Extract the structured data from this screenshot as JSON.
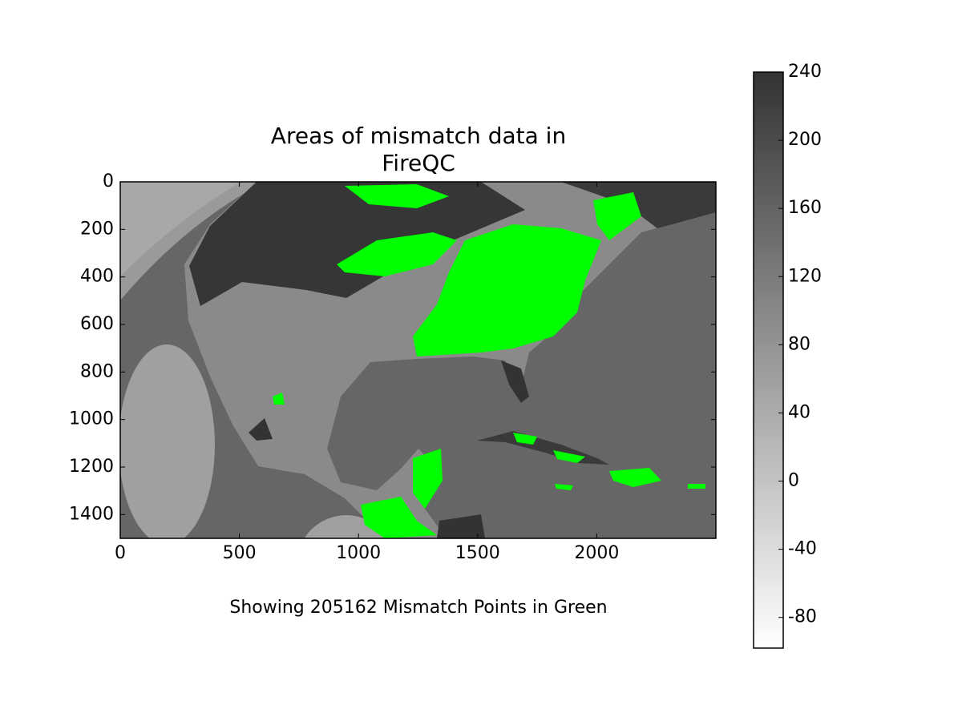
{
  "chart_data": {
    "type": "image",
    "title": "Areas of mismatch data in FireQC",
    "xlabel": "Showing 205162 Mismatch Points in Green",
    "xlim": [
      0,
      2500
    ],
    "xticks": [
      0,
      500,
      1000,
      1500,
      2000
    ],
    "ylim": [
      1500,
      0
    ],
    "yticks": [
      0,
      200,
      400,
      600,
      800,
      1000,
      1200,
      1400
    ],
    "colorbar": {
      "lim": [
        -98,
        240
      ],
      "ticks": [
        -80,
        -40,
        0,
        40,
        80,
        120,
        160,
        200,
        240
      ],
      "colors": [
        "#ffffff",
        "#333333"
      ]
    },
    "highlight_color": "#00ff00"
  }
}
